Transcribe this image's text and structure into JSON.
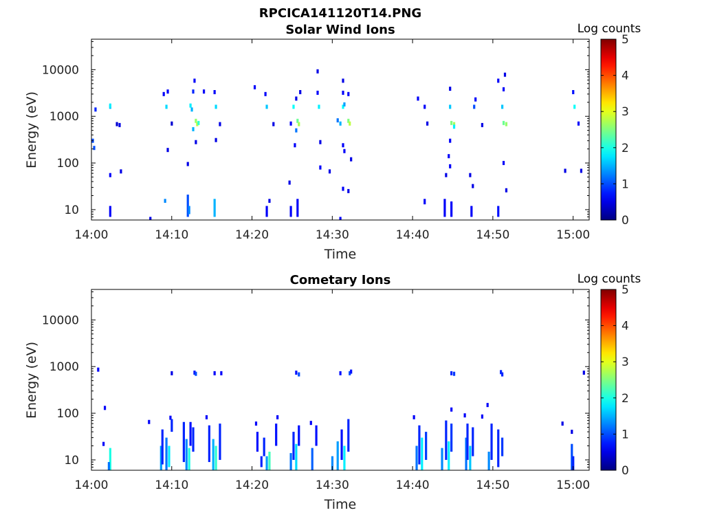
{
  "figure": {
    "title": "RPCICA141120T14.PNG"
  },
  "colors": {
    "background": "#ffffff",
    "axis": "#000000",
    "colormap": "jet"
  },
  "chart_data": [
    {
      "type": "heatmap",
      "title": "Solar Wind Ions",
      "xlabel": "Time",
      "ylabel": "Energy (eV)",
      "xlim": [
        "14:00",
        "15:02"
      ],
      "ylim": [
        6,
        45000
      ],
      "yscale": "log",
      "xticks": [
        "14:00",
        "14:10",
        "14:20",
        "14:30",
        "14:40",
        "14:50",
        "15:00"
      ],
      "yticks": [
        "10",
        "100",
        "1000",
        "10000"
      ],
      "grid": false,
      "colorbar": {
        "label": "Log counts",
        "range": [
          0,
          5
        ],
        "ticks": [
          "0",
          "1",
          "2",
          "3",
          "4",
          "5"
        ]
      },
      "cells": [
        {
          "t": "14:00:10",
          "e": 300,
          "v": 1.0
        },
        {
          "t": "14:00:20",
          "e": 210,
          "v": 1.0
        },
        {
          "t": "14:00:30",
          "e": 1400,
          "v": 0.8
        },
        {
          "t": "14:02:20",
          "e": 1600,
          "v": 1.6
        },
        {
          "t": "14:02:20",
          "e": 1700,
          "v": 1.8
        },
        {
          "t": "14:02:20",
          "e": 55,
          "v": 0.6
        },
        {
          "t": "14:03:10",
          "e": 680,
          "v": 0.4
        },
        {
          "t": "14:03:30",
          "e": 650,
          "v": 0.5
        },
        {
          "t": "14:03:40",
          "e": 66,
          "v": 0.5
        },
        {
          "t": "14:09:00",
          "e": 3000,
          "v": 0.6
        },
        {
          "t": "14:09:20",
          "e": 1600,
          "v": 1.7
        },
        {
          "t": "14:09:30",
          "e": 3400,
          "v": 0.6
        },
        {
          "t": "14:10:00",
          "e": 700,
          "v": 0.4
        },
        {
          "t": "14:09:30",
          "e": 190,
          "v": 0.5
        },
        {
          "t": "14:12:20",
          "e": 1700,
          "v": 1.8
        },
        {
          "t": "14:12:30",
          "e": 1400,
          "v": 1.5
        },
        {
          "t": "14:12:40",
          "e": 3400,
          "v": 0.8
        },
        {
          "t": "14:12:50",
          "e": 5800,
          "v": 0.6
        },
        {
          "t": "14:13:00",
          "e": 800,
          "v": 2.6
        },
        {
          "t": "14:13:10",
          "e": 680,
          "v": 2.8
        },
        {
          "t": "14:13:20",
          "e": 720,
          "v": 2.1
        },
        {
          "t": "14:12:40",
          "e": 530,
          "v": 1.5
        },
        {
          "t": "14:13:00",
          "e": 280,
          "v": 0.5
        },
        {
          "t": "14:12:00",
          "e": 95,
          "v": 0.5
        },
        {
          "t": "14:14:00",
          "e": 3400,
          "v": 0.6
        },
        {
          "t": "14:15:20",
          "e": 3300,
          "v": 0.6
        },
        {
          "t": "14:15:30",
          "e": 1600,
          "v": 1.7
        },
        {
          "t": "14:16:00",
          "e": 680,
          "v": 0.5
        },
        {
          "t": "14:15:30",
          "e": 310,
          "v": 0.5
        },
        {
          "t": "14:20:20",
          "e": 4200,
          "v": 0.6
        },
        {
          "t": "14:21:40",
          "e": 3000,
          "v": 0.6
        },
        {
          "t": "14:21:50",
          "e": 1600,
          "v": 1.6
        },
        {
          "t": "14:22:40",
          "e": 680,
          "v": 0.5
        },
        {
          "t": "14:24:50",
          "e": 700,
          "v": 0.6
        },
        {
          "t": "14:25:10",
          "e": 1600,
          "v": 1.9
        },
        {
          "t": "14:25:40",
          "e": 800,
          "v": 2.4
        },
        {
          "t": "14:25:50",
          "e": 680,
          "v": 2.7
        },
        {
          "t": "14:25:30",
          "e": 500,
          "v": 1.2
        },
        {
          "t": "14:25:20",
          "e": 240,
          "v": 0.6
        },
        {
          "t": "14:25:30",
          "e": 2400,
          "v": 0.5
        },
        {
          "t": "14:26:00",
          "e": 3300,
          "v": 0.5
        },
        {
          "t": "14:24:40",
          "e": 38,
          "v": 0.5
        },
        {
          "t": "14:28:10",
          "e": 3200,
          "v": 0.6
        },
        {
          "t": "14:28:20",
          "e": 1600,
          "v": 1.8
        },
        {
          "t": "14:28:30",
          "e": 280,
          "v": 0.5
        },
        {
          "t": "14:28:10",
          "e": 9200,
          "v": 0.5
        },
        {
          "t": "14:28:30",
          "e": 80,
          "v": 0.6
        },
        {
          "t": "14:29:40",
          "e": 66,
          "v": 0.5
        },
        {
          "t": "14:30:40",
          "e": 820,
          "v": 1.2
        },
        {
          "t": "14:31:00",
          "e": 700,
          "v": 1.5
        },
        {
          "t": "14:31:20",
          "e": 1600,
          "v": 1.9
        },
        {
          "t": "14:31:30",
          "e": 1800,
          "v": 1.4
        },
        {
          "t": "14:31:20",
          "e": 5800,
          "v": 0.5
        },
        {
          "t": "14:31:20",
          "e": 3200,
          "v": 0.6
        },
        {
          "t": "14:31:20",
          "e": 240,
          "v": 0.6
        },
        {
          "t": "14:31:30",
          "e": 180,
          "v": 0.6
        },
        {
          "t": "14:32:00",
          "e": 800,
          "v": 2.5
        },
        {
          "t": "14:32:10",
          "e": 700,
          "v": 2.8
        },
        {
          "t": "14:32:00",
          "e": 3000,
          "v": 0.6
        },
        {
          "t": "14:32:20",
          "e": 120,
          "v": 0.5
        },
        {
          "t": "14:31:20",
          "e": 28,
          "v": 0.6
        },
        {
          "t": "14:32:00",
          "e": 25,
          "v": 0.5
        },
        {
          "t": "14:40:40",
          "e": 2400,
          "v": 0.6
        },
        {
          "t": "14:41:30",
          "e": 1600,
          "v": 0.6
        },
        {
          "t": "14:41:50",
          "e": 700,
          "v": 0.5
        },
        {
          "t": "14:44:40",
          "e": 3900,
          "v": 0.5
        },
        {
          "t": "14:44:40",
          "e": 1600,
          "v": 1.6
        },
        {
          "t": "14:44:50",
          "e": 720,
          "v": 2.5
        },
        {
          "t": "14:45:10",
          "e": 680,
          "v": 2.7
        },
        {
          "t": "14:45:10",
          "e": 600,
          "v": 1.8
        },
        {
          "t": "14:44:40",
          "e": 300,
          "v": 0.6
        },
        {
          "t": "14:44:30",
          "e": 140,
          "v": 0.6
        },
        {
          "t": "14:44:40",
          "e": 85,
          "v": 0.6
        },
        {
          "t": "14:44:10",
          "e": 55,
          "v": 0.5
        },
        {
          "t": "14:47:40",
          "e": 1600,
          "v": 1.0
        },
        {
          "t": "14:47:50",
          "e": 2300,
          "v": 0.6
        },
        {
          "t": "14:48:40",
          "e": 650,
          "v": 0.5
        },
        {
          "t": "14:47:10",
          "e": 55,
          "v": 0.5
        },
        {
          "t": "14:47:30",
          "e": 32,
          "v": 0.5
        },
        {
          "t": "14:50:40",
          "e": 5800,
          "v": 0.6
        },
        {
          "t": "14:51:10",
          "e": 1600,
          "v": 1.6
        },
        {
          "t": "14:51:20",
          "e": 720,
          "v": 2.4
        },
        {
          "t": "14:51:40",
          "e": 680,
          "v": 2.6
        },
        {
          "t": "14:51:20",
          "e": 3800,
          "v": 0.6
        },
        {
          "t": "14:51:30",
          "e": 7800,
          "v": 0.5
        },
        {
          "t": "14:51:20",
          "e": 100,
          "v": 0.6
        },
        {
          "t": "14:51:40",
          "e": 26,
          "v": 0.5
        },
        {
          "t": "14:59:00",
          "e": 68,
          "v": 0.5
        },
        {
          "t": "15:00:00",
          "e": 3300,
          "v": 0.7
        },
        {
          "t": "15:00:10",
          "e": 1600,
          "v": 1.9
        },
        {
          "t": "15:00:40",
          "e": 700,
          "v": 0.6
        },
        {
          "t": "15:01:00",
          "e": 68,
          "v": 0.5
        }
      ],
      "stripes": [
        {
          "t": "14:02:20",
          "e0": 7,
          "e1": 12,
          "v": 0.6
        },
        {
          "t": "14:07:20",
          "e0": 6,
          "e1": 7,
          "v": 0.5
        },
        {
          "t": "14:09:10",
          "e0": 14,
          "e1": 17,
          "v": 1.3
        },
        {
          "t": "14:12:00",
          "e0": 7,
          "e1": 21,
          "v": 1.0
        },
        {
          "t": "14:12:10",
          "e0": 8,
          "e1": 12,
          "v": 1.3
        },
        {
          "t": "14:15:20",
          "e0": 7,
          "e1": 17,
          "v": 1.5
        },
        {
          "t": "14:21:50",
          "e0": 7,
          "e1": 12,
          "v": 0.6
        },
        {
          "t": "14:22:10",
          "e0": 14,
          "e1": 17,
          "v": 0.5
        },
        {
          "t": "14:24:50",
          "e0": 7,
          "e1": 12,
          "v": 0.6
        },
        {
          "t": "14:25:40",
          "e0": 7,
          "e1": 17,
          "v": 0.6
        },
        {
          "t": "14:31:00",
          "e0": 6,
          "e1": 7,
          "v": 0.6
        },
        {
          "t": "14:41:30",
          "e0": 13,
          "e1": 17,
          "v": 0.6
        },
        {
          "t": "14:44:00",
          "e0": 7,
          "e1": 17,
          "v": 0.6
        },
        {
          "t": "14:44:50",
          "e0": 7,
          "e1": 15,
          "v": 0.6
        },
        {
          "t": "14:47:20",
          "e0": 7,
          "e1": 12,
          "v": 0.6
        },
        {
          "t": "14:50:40",
          "e0": 7,
          "e1": 12,
          "v": 0.7
        }
      ]
    },
    {
      "type": "heatmap",
      "title": "Cometary Ions",
      "xlabel": "Time",
      "ylabel": "Energy (eV)",
      "xlim": [
        "14:00",
        "15:02"
      ],
      "ylim": [
        6,
        45000
      ],
      "yscale": "log",
      "xticks": [
        "14:00",
        "14:10",
        "14:20",
        "14:30",
        "14:40",
        "14:50",
        "15:00"
      ],
      "yticks": [
        "10",
        "100",
        "1000",
        "10000"
      ],
      "grid": false,
      "colorbar": {
        "label": "Log counts",
        "range": [
          0,
          5
        ],
        "ticks": [
          "0",
          "1",
          "2",
          "3",
          "4",
          "5"
        ]
      },
      "cells": [
        {
          "t": "14:00:50",
          "e": 860,
          "v": 0.6
        },
        {
          "t": "14:01:40",
          "e": 130,
          "v": 0.6
        },
        {
          "t": "14:01:30",
          "e": 22,
          "v": 0.6
        },
        {
          "t": "14:10:00",
          "e": 720,
          "v": 0.5
        },
        {
          "t": "14:12:50",
          "e": 740,
          "v": 0.7
        },
        {
          "t": "14:13:00",
          "e": 700,
          "v": 1.0
        },
        {
          "t": "14:15:20",
          "e": 720,
          "v": 0.6
        },
        {
          "t": "14:16:10",
          "e": 720,
          "v": 0.6
        },
        {
          "t": "14:25:30",
          "e": 740,
          "v": 0.7
        },
        {
          "t": "14:25:50",
          "e": 680,
          "v": 1.0
        },
        {
          "t": "14:31:00",
          "e": 720,
          "v": 0.7
        },
        {
          "t": "14:32:10",
          "e": 720,
          "v": 1.0
        },
        {
          "t": "14:32:20",
          "e": 780,
          "v": 0.7
        },
        {
          "t": "14:44:50",
          "e": 720,
          "v": 0.8
        },
        {
          "t": "14:45:10",
          "e": 700,
          "v": 0.9
        },
        {
          "t": "14:51:00",
          "e": 760,
          "v": 0.8
        },
        {
          "t": "14:51:10",
          "e": 680,
          "v": 0.8
        },
        {
          "t": "15:01:20",
          "e": 740,
          "v": 0.5
        },
        {
          "t": "14:49:20",
          "e": 150,
          "v": 0.6
        },
        {
          "t": "14:44:50",
          "e": 120,
          "v": 0.6
        },
        {
          "t": "14:58:40",
          "e": 60,
          "v": 0.5
        },
        {
          "t": "14:59:50",
          "e": 40,
          "v": 0.5
        },
        {
          "t": "14:07:10",
          "e": 65,
          "v": 0.6
        },
        {
          "t": "14:14:20",
          "e": 82,
          "v": 0.6
        },
        {
          "t": "14:20:30",
          "e": 60,
          "v": 0.6
        },
        {
          "t": "14:23:10",
          "e": 82,
          "v": 0.6
        },
        {
          "t": "14:27:20",
          "e": 62,
          "v": 0.6
        },
        {
          "t": "14:40:10",
          "e": 82,
          "v": 0.6
        },
        {
          "t": "14:46:30",
          "e": 90,
          "v": 0.6
        },
        {
          "t": "14:48:40",
          "e": 85,
          "v": 0.6
        },
        {
          "t": "14:09:50",
          "e": 80,
          "v": 0.6
        }
      ],
      "stripes": [
        {
          "t": "14:02:20",
          "e0": 6,
          "e1": 18,
          "v": 2.0
        },
        {
          "t": "14:02:10",
          "e0": 6,
          "e1": 9,
          "v": 1.2
        },
        {
          "t": "14:08:40",
          "e0": 6,
          "e1": 20,
          "v": 1.4
        },
        {
          "t": "14:08:50",
          "e0": 8,
          "e1": 45,
          "v": 0.8
        },
        {
          "t": "14:09:20",
          "e0": 6,
          "e1": 30,
          "v": 1.2
        },
        {
          "t": "14:09:40",
          "e0": 7,
          "e1": 20,
          "v": 1.8
        },
        {
          "t": "14:10:00",
          "e0": 40,
          "e1": 75,
          "v": 0.8
        },
        {
          "t": "14:11:30",
          "e0": 9,
          "e1": 65,
          "v": 0.8
        },
        {
          "t": "14:11:50",
          "e0": 6,
          "e1": 28,
          "v": 1.3
        },
        {
          "t": "14:12:10",
          "e0": 6,
          "e1": 18,
          "v": 2.0
        },
        {
          "t": "14:12:20",
          "e0": 20,
          "e1": 65,
          "v": 0.7
        },
        {
          "t": "14:12:40",
          "e0": 15,
          "e1": 50,
          "v": 0.8
        },
        {
          "t": "14:14:40",
          "e0": 9,
          "e1": 55,
          "v": 0.8
        },
        {
          "t": "14:15:10",
          "e0": 6,
          "e1": 28,
          "v": 1.5
        },
        {
          "t": "14:15:30",
          "e0": 6,
          "e1": 20,
          "v": 2.1
        },
        {
          "t": "14:16:00",
          "e0": 10,
          "e1": 60,
          "v": 0.8
        },
        {
          "t": "14:20:40",
          "e0": 15,
          "e1": 40,
          "v": 0.7
        },
        {
          "t": "14:21:10",
          "e0": 7,
          "e1": 12,
          "v": 0.8
        },
        {
          "t": "14:21:30",
          "e0": 12,
          "e1": 30,
          "v": 0.8
        },
        {
          "t": "14:21:50",
          "e0": 6,
          "e1": 12,
          "v": 1.4
        },
        {
          "t": "14:22:10",
          "e0": 6,
          "e1": 15,
          "v": 2.2
        },
        {
          "t": "14:23:00",
          "e0": 20,
          "e1": 60,
          "v": 0.7
        },
        {
          "t": "14:24:50",
          "e0": 6,
          "e1": 14,
          "v": 1.2
        },
        {
          "t": "14:25:10",
          "e0": 10,
          "e1": 40,
          "v": 0.8
        },
        {
          "t": "14:25:30",
          "e0": 6,
          "e1": 22,
          "v": 1.7
        },
        {
          "t": "14:25:50",
          "e0": 20,
          "e1": 55,
          "v": 0.7
        },
        {
          "t": "14:27:30",
          "e0": 6,
          "e1": 18,
          "v": 1.1
        },
        {
          "t": "14:28:00",
          "e0": 20,
          "e1": 55,
          "v": 0.7
        },
        {
          "t": "14:30:00",
          "e0": 6,
          "e1": 12,
          "v": 1.3
        },
        {
          "t": "14:30:40",
          "e0": 6,
          "e1": 25,
          "v": 1.4
        },
        {
          "t": "14:31:10",
          "e0": 10,
          "e1": 45,
          "v": 0.7
        },
        {
          "t": "14:31:30",
          "e0": 6,
          "e1": 20,
          "v": 1.8
        },
        {
          "t": "14:32:00",
          "e0": 15,
          "e1": 75,
          "v": 0.8
        },
        {
          "t": "14:40:30",
          "e0": 6,
          "e1": 20,
          "v": 1.2
        },
        {
          "t": "14:40:50",
          "e0": 8,
          "e1": 55,
          "v": 0.8
        },
        {
          "t": "14:41:10",
          "e0": 6,
          "e1": 30,
          "v": 1.8
        },
        {
          "t": "14:41:40",
          "e0": 10,
          "e1": 40,
          "v": 0.9
        },
        {
          "t": "14:43:40",
          "e0": 6,
          "e1": 18,
          "v": 1.3
        },
        {
          "t": "14:44:10",
          "e0": 10,
          "e1": 70,
          "v": 0.8
        },
        {
          "t": "14:44:30",
          "e0": 6,
          "e1": 25,
          "v": 1.8
        },
        {
          "t": "14:44:50",
          "e0": 15,
          "e1": 60,
          "v": 0.9
        },
        {
          "t": "14:46:40",
          "e0": 6,
          "e1": 30,
          "v": 1.2
        },
        {
          "t": "14:46:50",
          "e0": 10,
          "e1": 60,
          "v": 0.8
        },
        {
          "t": "14:47:10",
          "e0": 6,
          "e1": 20,
          "v": 1.6
        },
        {
          "t": "14:47:30",
          "e0": 12,
          "e1": 50,
          "v": 0.8
        },
        {
          "t": "14:49:30",
          "e0": 6,
          "e1": 15,
          "v": 1.3
        },
        {
          "t": "14:49:50",
          "e0": 10,
          "e1": 60,
          "v": 0.8
        },
        {
          "t": "14:50:40",
          "e0": 7,
          "e1": 45,
          "v": 0.8
        },
        {
          "t": "14:51:10",
          "e0": 12,
          "e1": 30,
          "v": 0.9
        },
        {
          "t": "14:59:50",
          "e0": 6,
          "e1": 22,
          "v": 1.0
        },
        {
          "t": "15:00:00",
          "e0": 6,
          "e1": 12,
          "v": 0.8
        }
      ]
    }
  ]
}
